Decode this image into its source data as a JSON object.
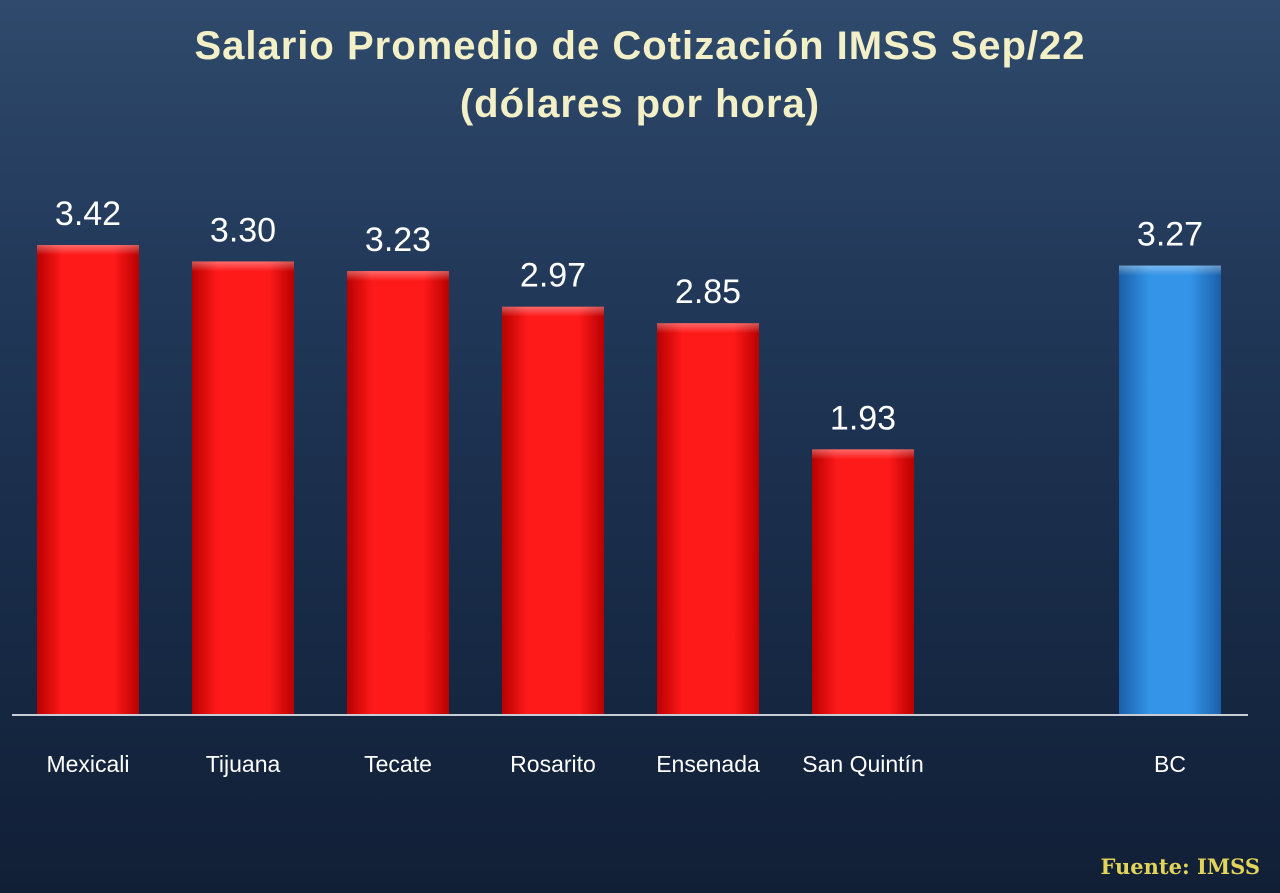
{
  "chart_data": {
    "type": "bar",
    "title": "Salario Promedio de Cotización IMSS  Sep/22",
    "subtitle": "(dólares por hora)",
    "categories": [
      "Mexicali",
      "Tijuana",
      "Tecate",
      "Rosarito",
      "Ensenada",
      "San Quintín",
      "BC"
    ],
    "values": [
      3.42,
      3.3,
      3.23,
      2.97,
      2.85,
      1.93,
      3.27
    ],
    "data_labels": [
      "3.42",
      "3.30",
      "3.23",
      "2.97",
      "2.85",
      "1.93",
      "3.27"
    ],
    "colors": [
      "#ee1010",
      "#ee1010",
      "#ee1010",
      "#ee1010",
      "#ee1010",
      "#ee1010",
      "#2a86d8"
    ],
    "ylim": [
      0,
      3.42
    ],
    "grid": false,
    "legend": "none"
  },
  "source": "Fuente: IMSS"
}
